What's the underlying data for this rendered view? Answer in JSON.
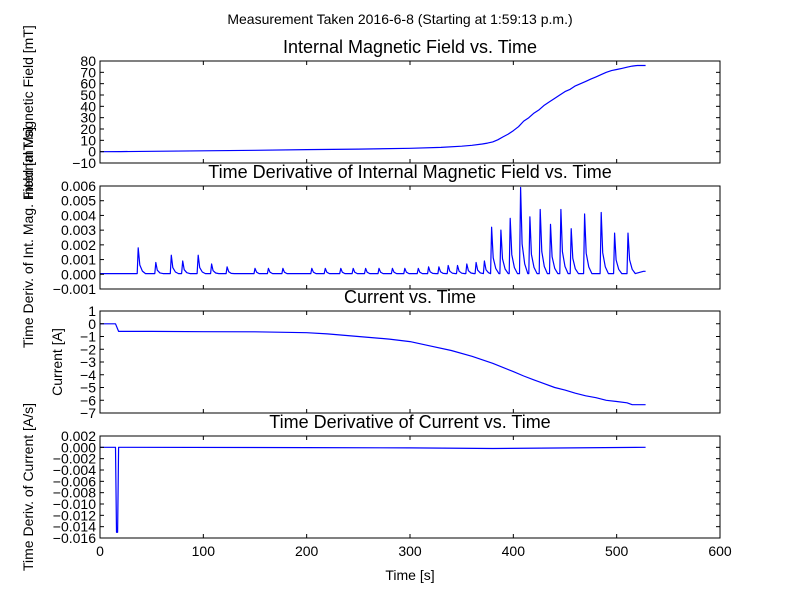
{
  "figure": {
    "suptitle": "Measurement Taken 2016-6-8 (Starting at 1:59:13 p.m.)",
    "line_color": "#0000ff",
    "background": "#ffffff"
  },
  "chart_data": [
    {
      "type": "line",
      "title": "Internal Magnetic Field vs. Time",
      "xlabel": "",
      "ylabel": "Internal Magnetic Field [mT]",
      "xlim": [
        0,
        600
      ],
      "ylim": [
        -10,
        80
      ],
      "yticks": [
        "−10",
        "0",
        "10",
        "20",
        "30",
        "40",
        "50",
        "60",
        "70",
        "80"
      ],
      "xticks_labeled": false,
      "x": [
        0,
        20,
        50,
        100,
        150,
        200,
        250,
        300,
        330,
        350,
        360,
        370,
        375,
        380,
        385,
        390,
        395,
        400,
        405,
        410,
        415,
        420,
        425,
        430,
        435,
        440,
        445,
        450,
        455,
        460,
        465,
        470,
        475,
        480,
        485,
        490,
        495,
        500,
        505,
        510,
        515,
        520,
        528
      ],
      "values": [
        0,
        0.1,
        0.3,
        0.8,
        1.2,
        1.8,
        2.3,
        3.0,
        3.8,
        4.8,
        5.6,
        6.8,
        7.6,
        8.6,
        10.5,
        13,
        15.5,
        18.5,
        22,
        27,
        30,
        34,
        37,
        41,
        44,
        47,
        50,
        53,
        55,
        58,
        60,
        62,
        64,
        66,
        68,
        70,
        71.5,
        72.5,
        73.5,
        74.5,
        75.5,
        76,
        76
      ]
    },
    {
      "type": "line",
      "title": "Time Derivative of Internal Magnetic Field vs. Time",
      "xlabel": "",
      "ylabel": "Time Deriv. of Int. Mag. Field [mT/s]",
      "xlim": [
        0,
        600
      ],
      "ylim": [
        -0.001,
        0.006
      ],
      "yticks": [
        "−0.001",
        "0.000",
        "0.001",
        "0.002",
        "0.003",
        "0.004",
        "0.005",
        "0.006"
      ],
      "xticks_labeled": false,
      "baseline": 5e-05,
      "spikes": [
        {
          "x": 37,
          "peak": 0.0018
        },
        {
          "x": 54,
          "peak": 0.0008
        },
        {
          "x": 69,
          "peak": 0.0013
        },
        {
          "x": 80,
          "peak": 0.0009
        },
        {
          "x": 95,
          "peak": 0.0013
        },
        {
          "x": 108,
          "peak": 0.0007
        },
        {
          "x": 123,
          "peak": 0.0005
        },
        {
          "x": 150,
          "peak": 0.0004
        },
        {
          "x": 163,
          "peak": 0.0004
        },
        {
          "x": 177,
          "peak": 0.0004
        },
        {
          "x": 205,
          "peak": 0.0004
        },
        {
          "x": 218,
          "peak": 0.0004
        },
        {
          "x": 233,
          "peak": 0.0004
        },
        {
          "x": 245,
          "peak": 0.0004
        },
        {
          "x": 257,
          "peak": 0.0004
        },
        {
          "x": 270,
          "peak": 0.0004
        },
        {
          "x": 283,
          "peak": 0.0004
        },
        {
          "x": 295,
          "peak": 0.0004
        },
        {
          "x": 308,
          "peak": 0.0004
        },
        {
          "x": 318,
          "peak": 0.0005
        },
        {
          "x": 328,
          "peak": 0.0005
        },
        {
          "x": 337,
          "peak": 0.0006
        },
        {
          "x": 346,
          "peak": 0.0006
        },
        {
          "x": 355,
          "peak": 0.0007
        },
        {
          "x": 364,
          "peak": 0.0008
        },
        {
          "x": 372,
          "peak": 0.0009
        },
        {
          "x": 379,
          "peak": 0.0032
        },
        {
          "x": 388,
          "peak": 0.003
        },
        {
          "x": 397,
          "peak": 0.0038
        },
        {
          "x": 407,
          "peak": 0.0059
        },
        {
          "x": 416,
          "peak": 0.0039
        },
        {
          "x": 426,
          "peak": 0.0044
        },
        {
          "x": 436,
          "peak": 0.0034
        },
        {
          "x": 446,
          "peak": 0.0044
        },
        {
          "x": 456,
          "peak": 0.0031
        },
        {
          "x": 469,
          "peak": 0.0041
        },
        {
          "x": 485,
          "peak": 0.0042
        },
        {
          "x": 498,
          "peak": 0.0028
        },
        {
          "x": 511,
          "peak": 0.0028
        }
      ],
      "x_end": 528,
      "end_value": 0.0002
    },
    {
      "type": "line",
      "title": "Current vs. Time",
      "xlabel": "",
      "ylabel": "Current [A]",
      "xlim": [
        0,
        600
      ],
      "ylim": [
        -7,
        1
      ],
      "yticks": [
        "−7",
        "−6",
        "−5",
        "−4",
        "−3",
        "−2",
        "−1",
        "0",
        "1"
      ],
      "xticks_labeled": false,
      "x": [
        0,
        15,
        18,
        50,
        100,
        150,
        200,
        220,
        250,
        280,
        300,
        320,
        340,
        360,
        380,
        400,
        410,
        420,
        430,
        440,
        450,
        460,
        470,
        480,
        490,
        500,
        510,
        515,
        528
      ],
      "values": [
        0,
        0,
        -0.6,
        -0.6,
        -0.62,
        -0.63,
        -0.7,
        -0.8,
        -1.0,
        -1.2,
        -1.4,
        -1.75,
        -2.1,
        -2.55,
        -3.1,
        -3.75,
        -4.1,
        -4.4,
        -4.7,
        -5.0,
        -5.2,
        -5.45,
        -5.65,
        -5.8,
        -6.0,
        -6.1,
        -6.2,
        -6.35,
        -6.35
      ]
    },
    {
      "type": "line",
      "title": "Time Derivative of Current vs. Time",
      "xlabel": "Time [s]",
      "ylabel": "Time Deriv. of Current [A/s]",
      "xlim": [
        0,
        600
      ],
      "ylim": [
        -0.016,
        0.002
      ],
      "yticks": [
        "−0.016",
        "−0.014",
        "−0.012",
        "−0.010",
        "−0.008",
        "−0.006",
        "−0.004",
        "−0.002",
        "0.000",
        "0.002"
      ],
      "xticks": [
        "0",
        "100",
        "200",
        "300",
        "400",
        "500",
        "600"
      ],
      "xticks_labeled": true,
      "x": [
        0,
        15,
        16,
        17,
        18,
        19,
        200,
        300,
        380,
        528
      ],
      "values": [
        0,
        0,
        -0.015,
        -0.015,
        0,
        0,
        -5e-05,
        -0.0001,
        -0.0002,
        0
      ]
    }
  ]
}
